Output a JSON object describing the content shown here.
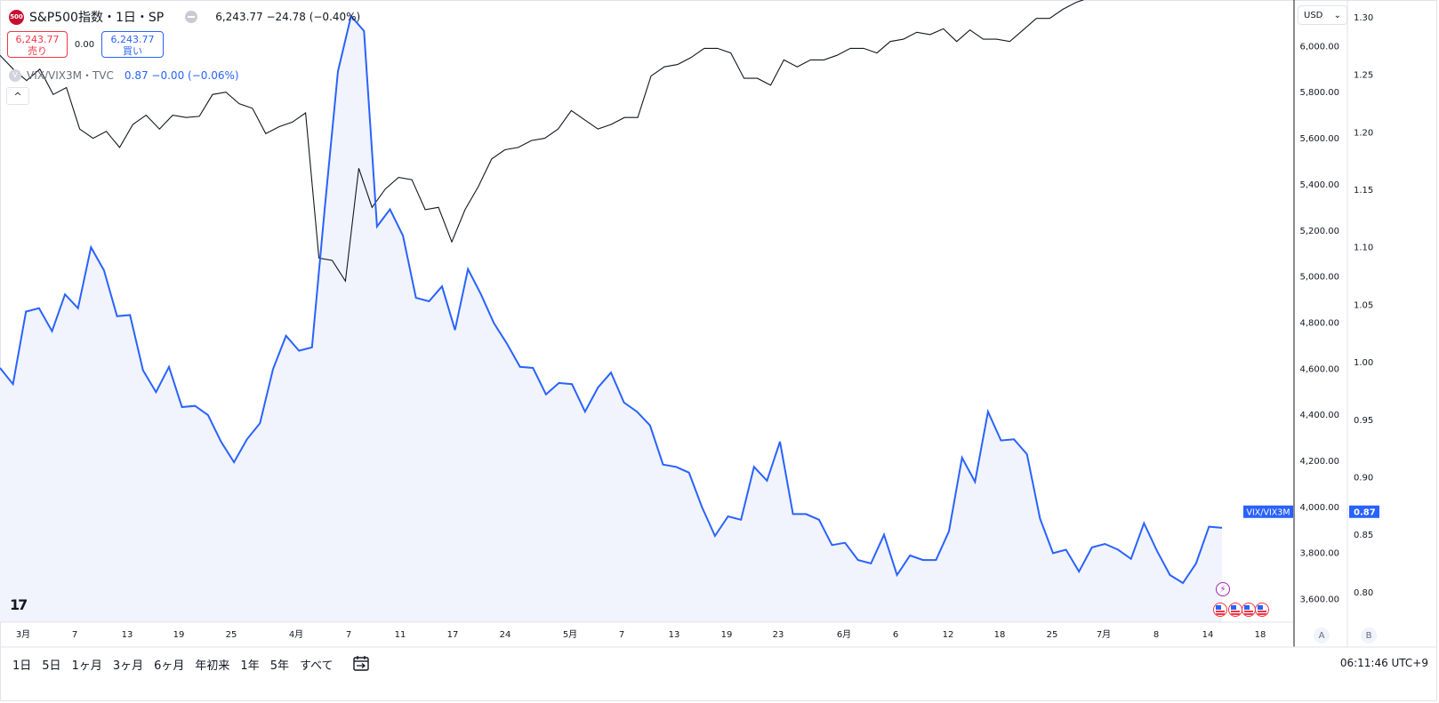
{
  "header": {
    "symbol_badge": "500",
    "symbol_title": "S&P500指数・1日・SP",
    "quote": "6,243.77 −24.78 (−0.40%)"
  },
  "trade": {
    "sell_price": "6,243.77",
    "sell_label": "売り",
    "spread": "0.00",
    "buy_price": "6,243.77",
    "buy_label": "買い"
  },
  "indicator": {
    "icon": "V",
    "name": "VIX/VIX3M・TVC",
    "value": "0.87 −0.00 (−0.06%)"
  },
  "collapse_icon": "^",
  "currency": "USD",
  "scale_buttons": [
    "A",
    "B"
  ],
  "logo": "17",
  "ranges": [
    "1日",
    "5日",
    "1ヶ月",
    "3ヶ月",
    "6ヶ月",
    "年初来",
    "1年",
    "5年",
    "すべて"
  ],
  "clock": "06:11:46 UTC+9",
  "colors": {
    "spx_line": "#131722",
    "vix_line": "#2962ff",
    "vix_fill": "#f1f4fd",
    "sell": "#f23645",
    "buy": "#2962ff"
  },
  "chart_data": {
    "type": "line",
    "x_tick_labels": [
      "3月",
      "7",
      "13",
      "19",
      "25",
      "4月",
      "7",
      "11",
      "17",
      "24",
      "5月",
      "7",
      "13",
      "19",
      "23",
      "6月",
      "6",
      "12",
      "18",
      "25",
      "7月",
      "8",
      "14",
      "18"
    ],
    "left_axis_ticks": [
      "6,000.00",
      "5,800.00",
      "5,600.00",
      "5,400.00",
      "5,200.00",
      "5,000.00",
      "4,800.00",
      "4,600.00",
      "4,400.00",
      "4,200.00",
      "4,000.00",
      "3,800.00",
      "3,600.00"
    ],
    "right_axis_ticks": [
      "1.30",
      "1.25",
      "1.20",
      "1.15",
      "1.10",
      "1.05",
      "1.00",
      "0.95",
      "0.90",
      "0.85",
      "0.80"
    ],
    "left_axis_range": [
      3500,
      6200
    ],
    "right_axis_range": [
      0.774,
      1.315
    ],
    "series": [
      {
        "name": "S&P500指数",
        "axis": "left",
        "values": [
          5960,
          5900,
          5850,
          5900,
          5790,
          5820,
          5640,
          5600,
          5630,
          5560,
          5660,
          5700,
          5640,
          5700,
          5690,
          5695,
          5790,
          5800,
          5750,
          5730,
          5620,
          5650,
          5670,
          5710,
          5080,
          5070,
          4980,
          5470,
          5300,
          5380,
          5430,
          5420,
          5290,
          5300,
          5150,
          5290,
          5390,
          5510,
          5550,
          5560,
          5590,
          5600,
          5640,
          5720,
          5680,
          5640,
          5660,
          5690,
          5690,
          5870,
          5910,
          5920,
          5950,
          5990,
          5990,
          5970,
          5860,
          5860,
          5830,
          5940,
          5910,
          5940,
          5940,
          5960,
          5990,
          5990,
          5970,
          6020,
          6030,
          6060,
          6050,
          6075,
          6020,
          6070,
          6030,
          6030,
          6020,
          6070,
          6120,
          6120,
          6160,
          6190,
          6210,
          6230
        ]
      },
      {
        "name": "VIX/VIX3M",
        "axis": "right",
        "values": [
          0.995,
          0.981,
          1.044,
          1.047,
          1.027,
          1.059,
          1.047,
          1.1,
          1.08,
          1.04,
          1.041,
          0.993,
          0.974,
          0.996,
          0.961,
          0.962,
          0.954,
          0.931,
          0.913,
          0.933,
          0.947,
          0.994,
          1.023,
          1.01,
          1.013,
          1.136,
          1.253,
          1.301,
          1.288,
          1.118,
          1.133,
          1.11,
          1.056,
          1.053,
          1.066,
          1.028,
          1.081,
          1.059,
          1.034,
          1.016,
          0.996,
          0.995,
          0.972,
          0.982,
          0.981,
          0.957,
          0.978,
          0.991,
          0.965,
          0.957,
          0.945,
          0.911,
          0.909,
          0.904,
          0.874,
          0.849,
          0.866,
          0.863,
          0.909,
          0.897,
          0.931,
          0.868,
          0.868,
          0.863,
          0.841,
          0.843,
          0.828,
          0.825,
          0.85,
          0.815,
          0.832,
          0.828,
          0.828,
          0.853,
          0.917,
          0.896,
          0.957,
          0.932,
          0.933,
          0.92,
          0.864,
          0.834,
          0.837,
          0.818,
          0.839,
          0.842,
          0.837,
          0.829,
          0.86,
          0.836,
          0.815,
          0.808,
          0.825,
          0.857,
          0.856
        ]
      }
    ],
    "last_value_label": "VIX/VIX3M",
    "last_value": "0.87",
    "grid": false
  }
}
